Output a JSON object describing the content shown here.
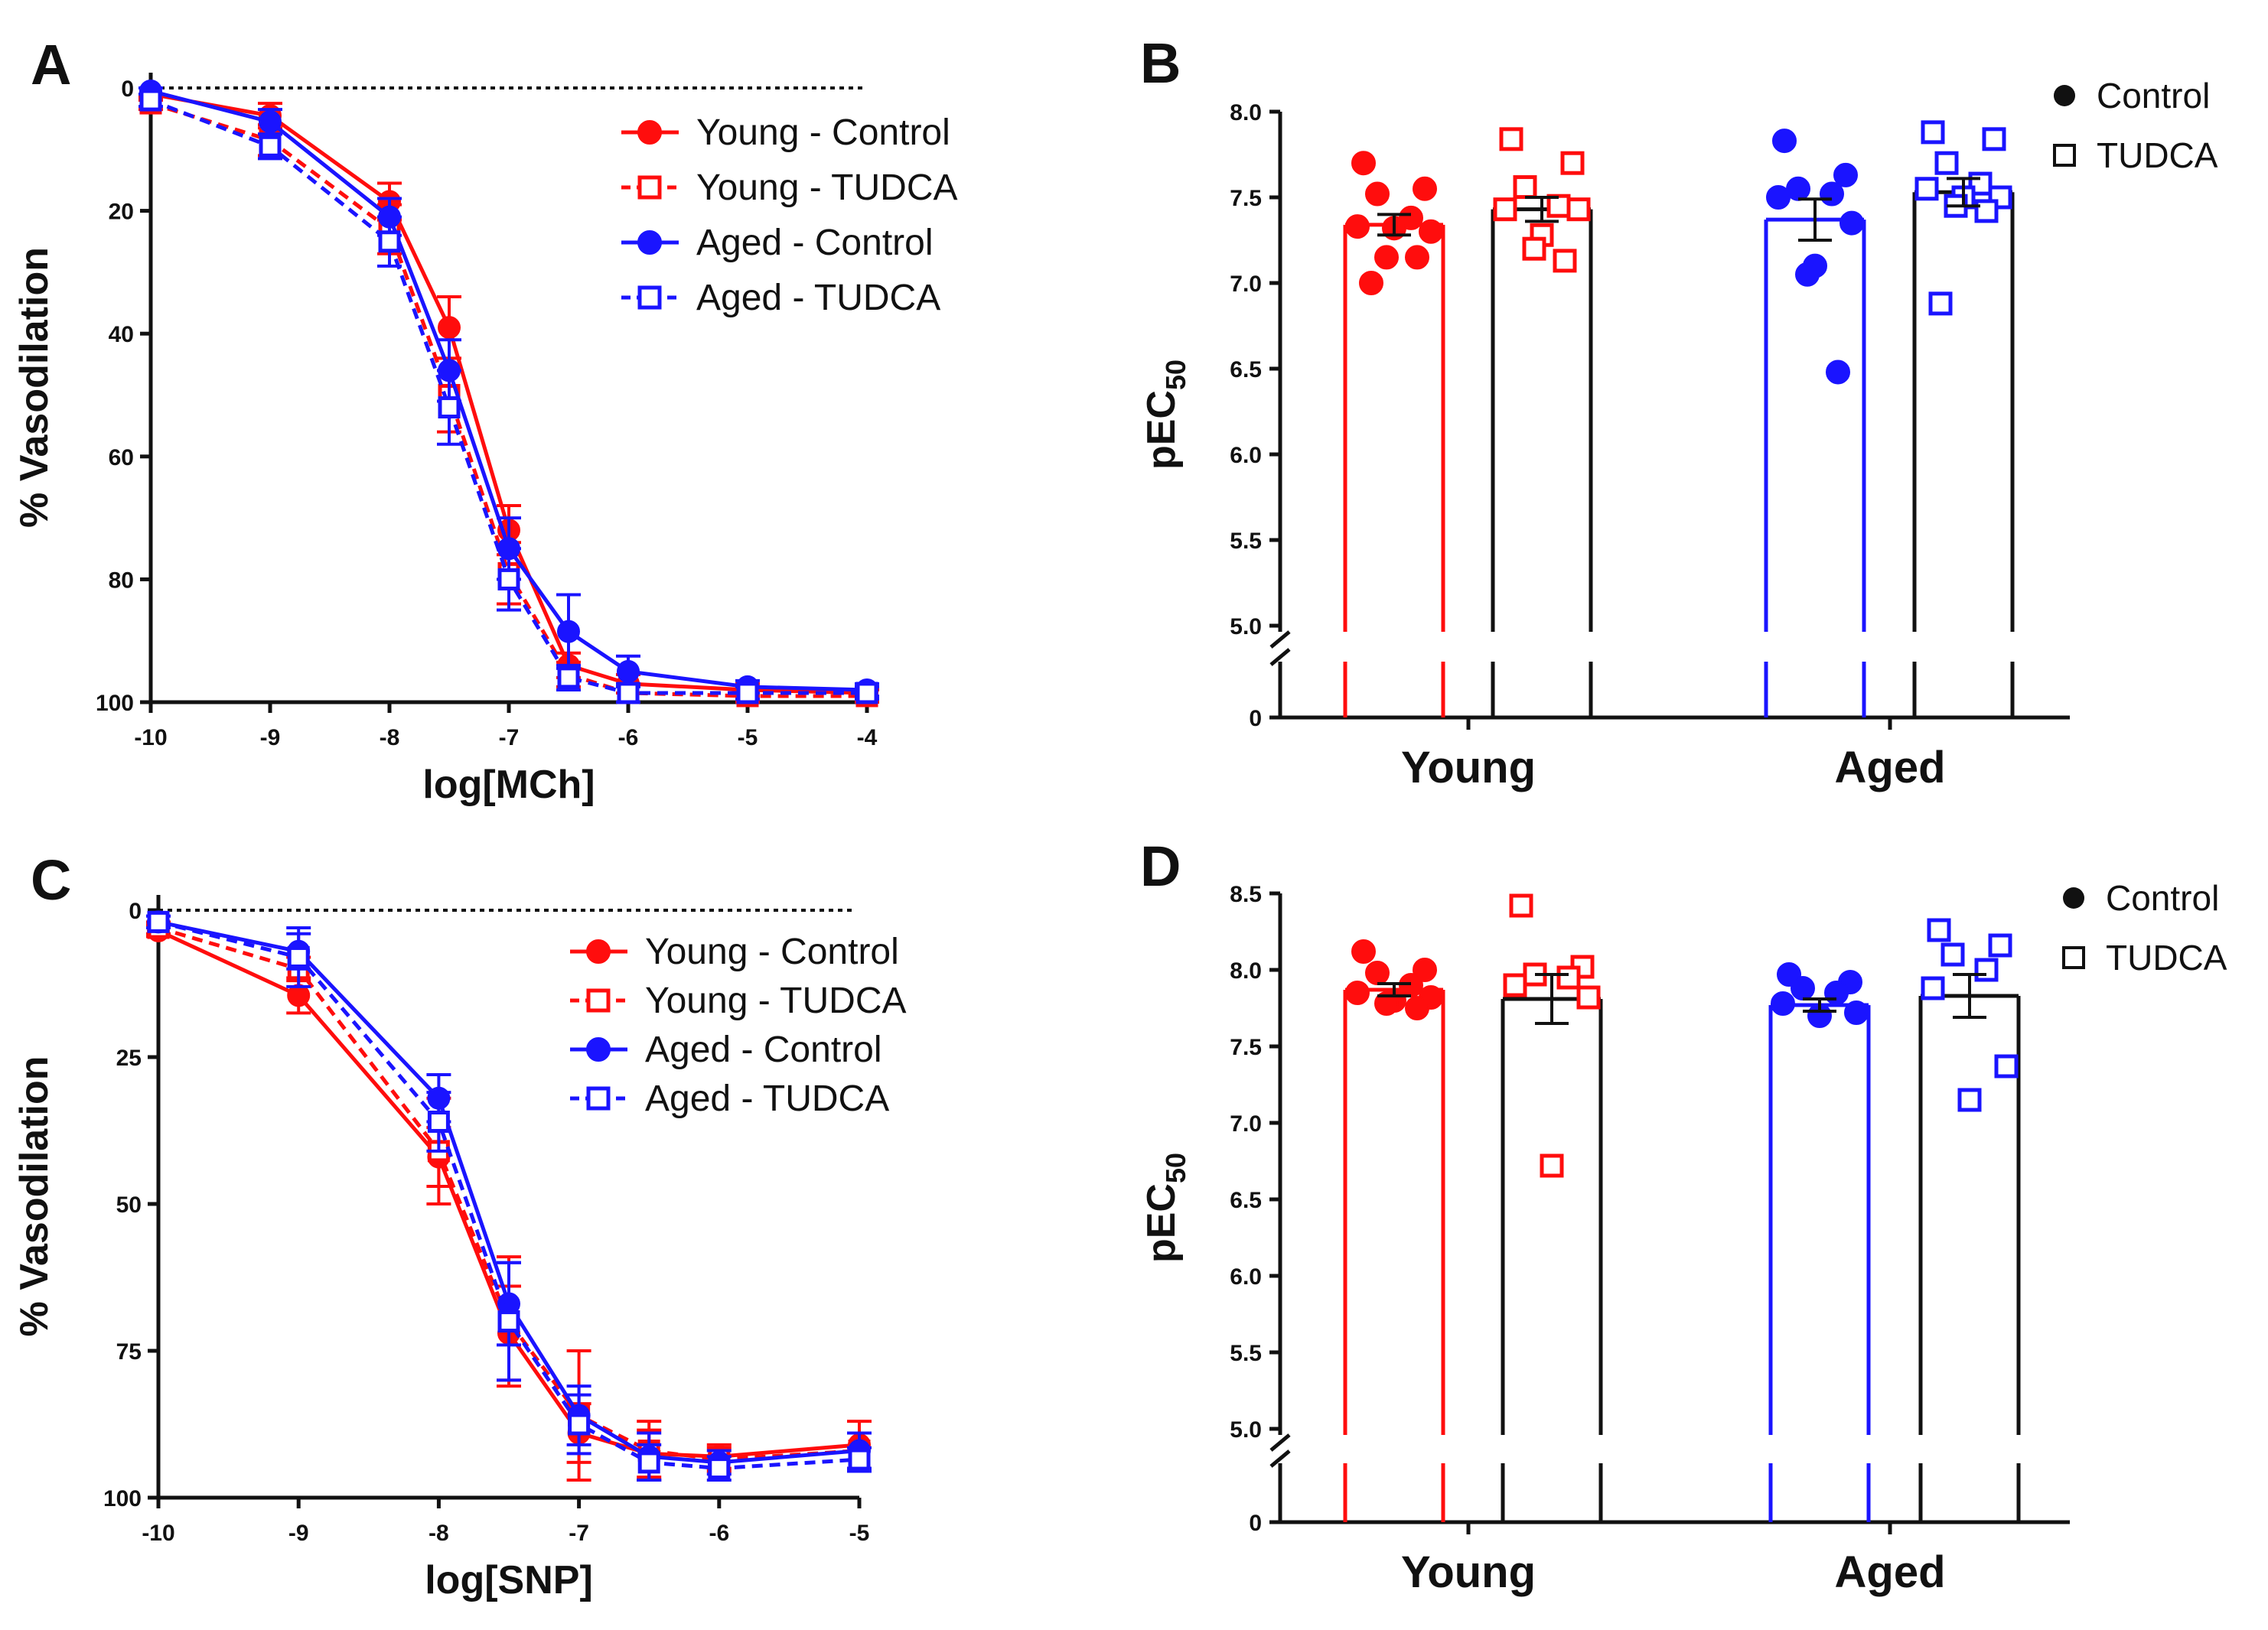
{
  "colors": {
    "red": "#ff0d0d",
    "blue": "#1a14ff",
    "black": "#111111"
  },
  "chart_data": [
    {
      "panel": "A",
      "type": "line",
      "xlabel": "log[MCh]",
      "ylabel": "% Vasodilation",
      "x_ticks": [
        "-10",
        "-9",
        "-8",
        "-7",
        "-6",
        "-5",
        "-4"
      ],
      "y_ticks": [
        "0",
        "20",
        "40",
        "60",
        "80",
        "100"
      ],
      "xlim": [
        -10,
        -4
      ],
      "ylim": [
        0,
        100
      ],
      "y_inverted": true,
      "reference_line": 0,
      "x": [
        -10,
        -9,
        -8,
        -7.5,
        -7,
        -6.5,
        -6,
        -5,
        -4
      ],
      "series": [
        {
          "name": "Young - Control",
          "color": "red",
          "marker": "circle",
          "dashed": false,
          "values": [
            1,
            4.5,
            18.5,
            39,
            72,
            94,
            97,
            98,
            98.5
          ],
          "sem": [
            1,
            2,
            3,
            5,
            4,
            2,
            1.5,
            1,
            1
          ]
        },
        {
          "name": "Young - TUDCA",
          "color": "red",
          "marker": "square",
          "dashed": true,
          "values": [
            2.5,
            8.5,
            23,
            50,
            79,
            95.5,
            98.5,
            99,
            99
          ],
          "sem": [
            1,
            2.5,
            4,
            6,
            5,
            2,
            1.5,
            1,
            1
          ]
        },
        {
          "name": "Aged - Control",
          "color": "blue",
          "marker": "circle",
          "dashed": false,
          "values": [
            0.5,
            5.5,
            21,
            46,
            75,
            88.5,
            95,
            97.5,
            98
          ],
          "sem": [
            0.5,
            2,
            3,
            5,
            5,
            6,
            2.5,
            1,
            1
          ]
        },
        {
          "name": "Aged - TUDCA",
          "color": "blue",
          "marker": "square",
          "dashed": true,
          "values": [
            2,
            9.5,
            25,
            52,
            80,
            96,
            98.5,
            98.5,
            98.5
          ],
          "sem": [
            1,
            2,
            4,
            6,
            5,
            2,
            1.5,
            1,
            1
          ]
        }
      ]
    },
    {
      "panel": "B",
      "type": "bar",
      "ylabel": "pEC50",
      "ylabel_main": "pEC",
      "ylabel_sub": "50",
      "categories": [
        "Young",
        "Aged"
      ],
      "y_ticks": [
        "0",
        "5.0",
        "5.5",
        "6.0",
        "6.5",
        "7.0",
        "7.5",
        "8.0"
      ],
      "ylim": [
        5.0,
        8.0
      ],
      "axis_break": true,
      "legend": [
        "Control",
        "TUDCA"
      ],
      "bars": [
        {
          "group": "Young",
          "treatment": "Control",
          "color": "red",
          "marker": "circle",
          "mean": 7.34,
          "sem": 0.06,
          "points": [
            7.7,
            7.55,
            7.52,
            7.38,
            7.33,
            7.3,
            7.32,
            7.15,
            7.15,
            7.0
          ]
        },
        {
          "group": "Young",
          "treatment": "TUDCA",
          "color": "red",
          "marker": "square",
          "mean": 7.43,
          "sem": 0.07,
          "points": [
            7.84,
            7.7,
            7.56,
            7.45,
            7.43,
            7.43,
            7.28,
            7.2,
            7.13
          ]
        },
        {
          "group": "Aged",
          "treatment": "Control",
          "color": "blue",
          "marker": "circle",
          "mean": 7.37,
          "sem": 0.12,
          "points": [
            7.83,
            7.63,
            7.55,
            7.52,
            7.5,
            7.35,
            7.1,
            7.05,
            6.48
          ]
        },
        {
          "group": "Aged",
          "treatment": "TUDCA",
          "color": "blue",
          "marker": "square",
          "mean": 7.53,
          "sem": 0.08,
          "points": [
            7.88,
            7.84,
            7.7,
            7.58,
            7.55,
            7.5,
            7.5,
            7.45,
            7.42,
            6.88
          ]
        }
      ]
    },
    {
      "panel": "C",
      "type": "line",
      "xlabel": "log[SNP]",
      "ylabel": "% Vasodilation",
      "x_ticks": [
        "-10",
        "-9",
        "-8",
        "-7",
        "-6",
        "-5"
      ],
      "y_ticks": [
        "0",
        "25",
        "50",
        "75",
        "100"
      ],
      "xlim": [
        -10,
        -5
      ],
      "ylim": [
        0,
        100
      ],
      "y_inverted": true,
      "reference_line": 0,
      "x": [
        -10,
        -9,
        -8,
        -7.5,
        -7,
        -6.5,
        -6,
        -5
      ],
      "series": [
        {
          "name": "Young - Control",
          "color": "red",
          "marker": "circle",
          "dashed": false,
          "values": [
            3.5,
            14.5,
            42,
            72,
            89,
            92.5,
            93,
            91
          ],
          "sem": [
            1,
            3,
            5,
            8,
            5,
            4,
            2,
            4
          ]
        },
        {
          "name": "Young - TUDCA",
          "color": "red",
          "marker": "square",
          "dashed": true,
          "values": [
            3,
            10,
            41,
            70,
            86,
            92,
            93.5,
            92
          ],
          "sem": [
            1,
            2,
            9,
            11,
            11,
            5,
            2,
            3
          ]
        },
        {
          "name": "Aged - Control",
          "color": "blue",
          "marker": "circle",
          "dashed": false,
          "values": [
            2,
            7,
            32,
            67,
            86,
            93,
            94,
            92
          ],
          "sem": [
            1,
            3,
            4,
            7,
            5,
            4,
            2,
            3
          ]
        },
        {
          "name": "Aged - TUDCA",
          "color": "blue",
          "marker": "square",
          "dashed": true,
          "values": [
            2,
            8,
            36,
            70,
            87.5,
            94,
            95,
            93.5
          ],
          "sem": [
            1,
            5,
            5,
            10,
            5,
            3,
            2,
            2
          ]
        }
      ]
    },
    {
      "panel": "D",
      "type": "bar",
      "ylabel": "pEC50",
      "ylabel_main": "pEC",
      "ylabel_sub": "50",
      "categories": [
        "Young",
        "Aged"
      ],
      "y_ticks": [
        "0",
        "5.0",
        "5.5",
        "6.0",
        "6.5",
        "7.0",
        "7.5",
        "8.0",
        "8.5"
      ],
      "ylim": [
        5.0,
        8.5
      ],
      "axis_break": true,
      "legend": [
        "Control",
        "TUDCA"
      ],
      "bars": [
        {
          "group": "Young",
          "treatment": "Control",
          "color": "red",
          "marker": "circle",
          "mean": 7.87,
          "sem": 0.04,
          "points": [
            8.12,
            8.0,
            7.98,
            7.9,
            7.85,
            7.82,
            7.8,
            7.78,
            7.75
          ]
        },
        {
          "group": "Young",
          "treatment": "TUDCA",
          "color": "red",
          "marker": "square",
          "mean": 7.81,
          "sem": 0.16,
          "points": [
            8.42,
            8.02,
            7.97,
            7.95,
            7.9,
            7.82,
            6.72
          ]
        },
        {
          "group": "Aged",
          "treatment": "Control",
          "color": "blue",
          "marker": "circle",
          "mean": 7.77,
          "sem": 0.04,
          "points": [
            7.97,
            7.92,
            7.88,
            7.85,
            7.78,
            7.72,
            7.7
          ]
        },
        {
          "group": "Aged",
          "treatment": "TUDCA",
          "color": "blue",
          "marker": "square",
          "mean": 7.83,
          "sem": 0.14,
          "points": [
            8.26,
            8.16,
            8.1,
            8.0,
            7.88,
            7.37,
            7.15
          ]
        }
      ]
    }
  ]
}
